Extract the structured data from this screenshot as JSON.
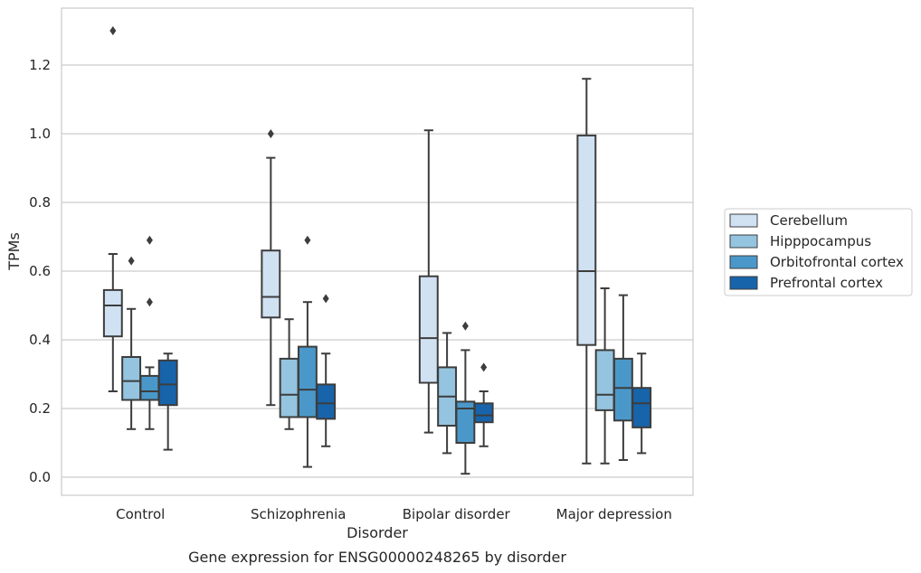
{
  "chart_data": {
    "type": "box",
    "title": "Gene expression for ENSG00000248265 by disorder",
    "xlabel": "Disorder",
    "ylabel": "TPMs",
    "ylim": [
      -0.05,
      1.35
    ],
    "yticks": [
      0.0,
      0.2,
      0.4,
      0.6,
      0.8,
      1.0,
      1.2
    ],
    "grid": true,
    "legend_position": "right",
    "categories": [
      "Control",
      "Schizophrenia",
      "Bipolar disorder",
      "Major depression"
    ],
    "series": [
      {
        "name": "Cerebellum",
        "color": "#d0e1f2",
        "boxes": [
          {
            "whisker_low": 0.25,
            "q1": 0.41,
            "median": 0.5,
            "q3": 0.545,
            "whisker_high": 0.65,
            "outliers": [
              1.3
            ]
          },
          {
            "whisker_low": 0.21,
            "q1": 0.465,
            "median": 0.525,
            "q3": 0.66,
            "whisker_high": 0.93,
            "outliers": [
              1.0
            ]
          },
          {
            "whisker_low": 0.13,
            "q1": 0.275,
            "median": 0.405,
            "q3": 0.585,
            "whisker_high": 1.01,
            "outliers": []
          },
          {
            "whisker_low": 0.04,
            "q1": 0.385,
            "median": 0.6,
            "q3": 0.995,
            "whisker_high": 1.16,
            "outliers": []
          }
        ]
      },
      {
        "name": "Hipppocampus",
        "color": "#94c4df",
        "boxes": [
          {
            "whisker_low": 0.14,
            "q1": 0.225,
            "median": 0.28,
            "q3": 0.35,
            "whisker_high": 0.49,
            "outliers": [
              0.63
            ]
          },
          {
            "whisker_low": 0.14,
            "q1": 0.175,
            "median": 0.24,
            "q3": 0.345,
            "whisker_high": 0.46,
            "outliers": []
          },
          {
            "whisker_low": 0.07,
            "q1": 0.15,
            "median": 0.235,
            "q3": 0.32,
            "whisker_high": 0.42,
            "outliers": []
          },
          {
            "whisker_low": 0.04,
            "q1": 0.195,
            "median": 0.24,
            "q3": 0.37,
            "whisker_high": 0.55,
            "outliers": []
          }
        ]
      },
      {
        "name": "Orbitofrontal cortex",
        "color": "#4a98c9",
        "boxes": [
          {
            "whisker_low": 0.14,
            "q1": 0.225,
            "median": 0.25,
            "q3": 0.295,
            "whisker_high": 0.32,
            "outliers": [
              0.51,
              0.69
            ]
          },
          {
            "whisker_low": 0.03,
            "q1": 0.175,
            "median": 0.255,
            "q3": 0.38,
            "whisker_high": 0.51,
            "outliers": [
              0.69
            ]
          },
          {
            "whisker_low": 0.01,
            "q1": 0.1,
            "median": 0.2,
            "q3": 0.22,
            "whisker_high": 0.37,
            "outliers": [
              0.44
            ]
          },
          {
            "whisker_low": 0.05,
            "q1": 0.165,
            "median": 0.26,
            "q3": 0.345,
            "whisker_high": 0.53,
            "outliers": []
          }
        ]
      },
      {
        "name": "Prefrontal cortex",
        "color": "#1764ab",
        "boxes": [
          {
            "whisker_low": 0.08,
            "q1": 0.21,
            "median": 0.27,
            "q3": 0.34,
            "whisker_high": 0.36,
            "outliers": []
          },
          {
            "whisker_low": 0.09,
            "q1": 0.17,
            "median": 0.215,
            "q3": 0.27,
            "whisker_high": 0.36,
            "outliers": [
              0.52
            ]
          },
          {
            "whisker_low": 0.09,
            "q1": 0.16,
            "median": 0.18,
            "q3": 0.215,
            "whisker_high": 0.25,
            "outliers": [
              0.32
            ]
          },
          {
            "whisker_low": 0.07,
            "q1": 0.145,
            "median": 0.215,
            "q3": 0.26,
            "whisker_high": 0.36,
            "outliers": []
          }
        ]
      }
    ]
  }
}
